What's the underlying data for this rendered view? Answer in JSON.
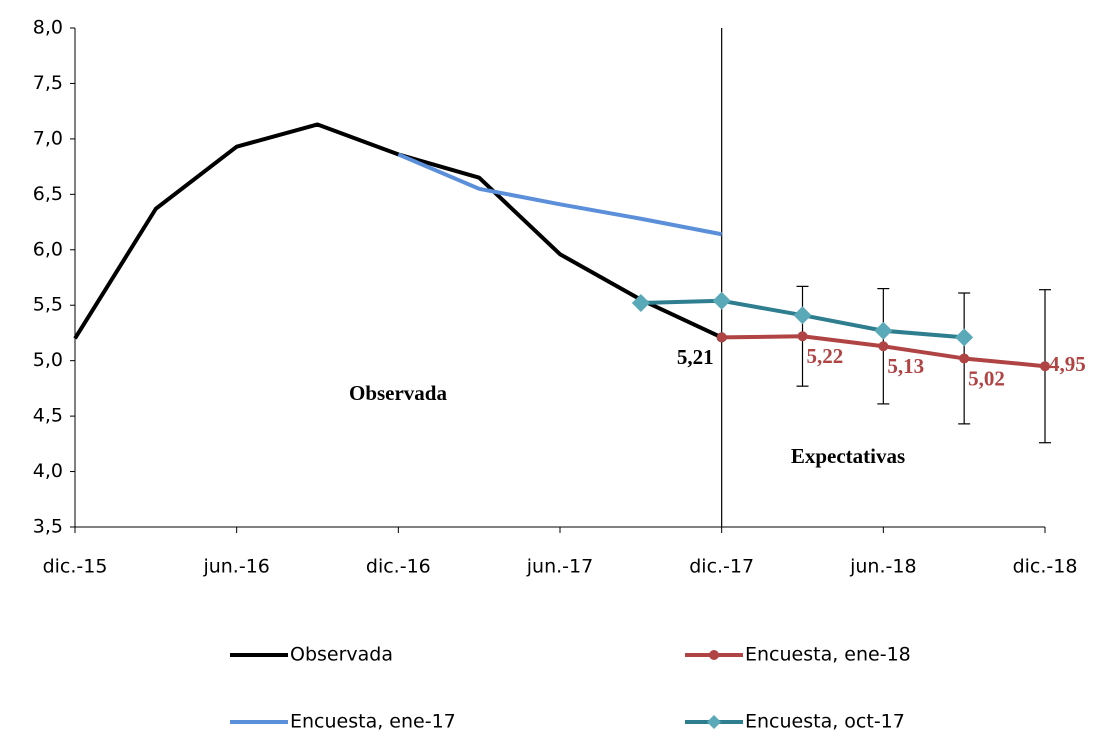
{
  "chart_data": {
    "type": "line",
    "categories": [
      "dic.-15",
      null,
      "jun.-16",
      null,
      "dic.-16",
      null,
      "jun.-17",
      null,
      "dic.-17",
      null,
      "jun.-18",
      null,
      "dic.-18"
    ],
    "series": [
      {
        "name": "Observada",
        "color": "#000000",
        "values": [
          5.2,
          6.37,
          6.93,
          7.13,
          6.86,
          6.65,
          5.96,
          5.55,
          5.21,
          null,
          null,
          null,
          null
        ],
        "value_labels": [
          null,
          null,
          null,
          null,
          null,
          null,
          null,
          null,
          "5,21",
          null,
          null,
          null,
          null
        ]
      },
      {
        "name": "Encuesta, ene-18",
        "color": "#b04444",
        "marker": "circle",
        "values": [
          null,
          null,
          null,
          null,
          null,
          null,
          null,
          null,
          5.21,
          5.22,
          5.13,
          5.02,
          4.95
        ],
        "errors": [
          null,
          null,
          null,
          null,
          null,
          null,
          null,
          null,
          null,
          0.45,
          0.52,
          0.59,
          0.69
        ],
        "value_labels": [
          null,
          null,
          null,
          null,
          null,
          null,
          null,
          null,
          null,
          "5,22",
          "5,13",
          "5,02",
          "4,95"
        ]
      },
      {
        "name": "Encuesta, ene-17",
        "color": "#5b8fd9",
        "values": [
          null,
          null,
          null,
          null,
          6.86,
          6.55,
          6.41,
          6.28,
          6.14,
          null,
          null,
          null,
          null
        ]
      },
      {
        "name": "Encuesta, oct-17",
        "color": "#2e7e8f",
        "marker": "diamond",
        "marker_color": "#5aa9b8",
        "values": [
          null,
          null,
          null,
          null,
          null,
          null,
          null,
          5.52,
          5.54,
          5.41,
          5.27,
          5.21,
          null
        ]
      }
    ],
    "annotations": [
      "Observada",
      "Expectativas"
    ],
    "ylim": [
      3.5,
      8.0
    ],
    "yticks": [
      {
        "value": 3.5,
        "label": "3,5"
      },
      {
        "value": 4.0,
        "label": "4,0"
      },
      {
        "value": 4.5,
        "label": "4,5"
      },
      {
        "value": 5.0,
        "label": "5,0"
      },
      {
        "value": 5.5,
        "label": "5,5"
      },
      {
        "value": 6.0,
        "label": "6,0"
      },
      {
        "value": 6.5,
        "label": "6,5"
      },
      {
        "value": 7.0,
        "label": "7,0"
      },
      {
        "value": 7.5,
        "label": "7,5"
      },
      {
        "value": 8.0,
        "label": "8,0"
      }
    ],
    "legend": "bottom",
    "grid": false
  }
}
